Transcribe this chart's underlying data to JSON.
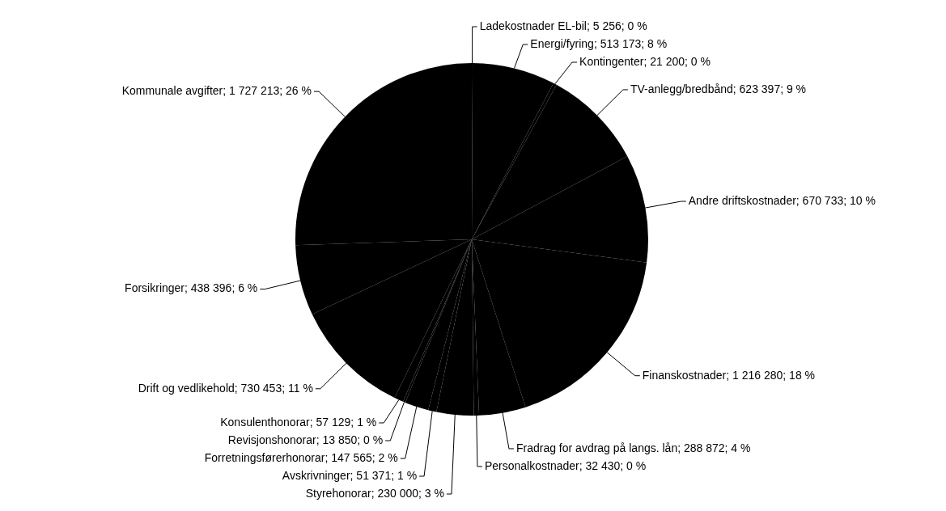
{
  "chart_data": {
    "type": "pie",
    "categories": [
      "Ladekostnader EL-bil",
      "Energi/fyring",
      "Kontingenter",
      "TV-anlegg/bredbånd",
      "Andre driftskostnader",
      "Finanskostnader",
      "Fradrag for avdrag på langs. lån",
      "Personalkostnader",
      "Styrehonorar",
      "Avskrivninger",
      "Forretningsførerhonorar",
      "Revisjonshonorar",
      "Konsulenthonorar",
      "Drift og vedlikehold",
      "Forsikringer",
      "Kommunale avgifter"
    ],
    "values": [
      5256,
      513173,
      21200,
      623397,
      670733,
      1216280,
      288872,
      32430,
      230000,
      51371,
      147565,
      13850,
      57129,
      730453,
      438396,
      1727213
    ],
    "value_labels": [
      "5 256; 0 %",
      "513 173; 8 %",
      "21 200; 0 %",
      "623 397; 9 %",
      "670 733; 10 %",
      "1 216 280; 18 %",
      "288 872; 4 %",
      "32 430; 0 %",
      "230 000; 3 %",
      "51 371; 1 %",
      "147 565; 2 %",
      "13 850; 0 %",
      "57 129; 1 %",
      "730 453; 11 %",
      "438 396; 6 %",
      "1 727 213; 26 %"
    ],
    "colors": [
      "#000000",
      "#000000",
      "#000000",
      "#000000",
      "#000000",
      "#000000",
      "#000000",
      "#000000",
      "#000000",
      "#000000",
      "#000000",
      "#000000",
      "#000000",
      "#000000",
      "#000000",
      "#000000"
    ],
    "legend": false
  }
}
